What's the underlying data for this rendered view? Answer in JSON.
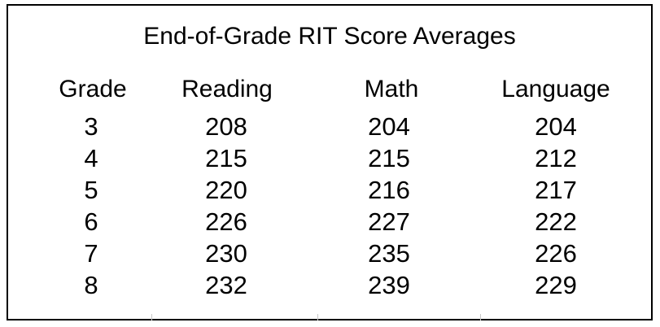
{
  "table": {
    "title": "End-of-Grade RIT Score Averages",
    "headers": [
      "Grade",
      "Reading",
      "Math",
      "Language"
    ],
    "rows": [
      [
        "3",
        "208",
        "204",
        "204"
      ],
      [
        "4",
        "215",
        "215",
        "212"
      ],
      [
        "5",
        "220",
        "216",
        "217"
      ],
      [
        "6",
        "226",
        "227",
        "222"
      ],
      [
        "7",
        "230",
        "235",
        "226"
      ],
      [
        "8",
        "232",
        "239",
        "229"
      ]
    ]
  }
}
